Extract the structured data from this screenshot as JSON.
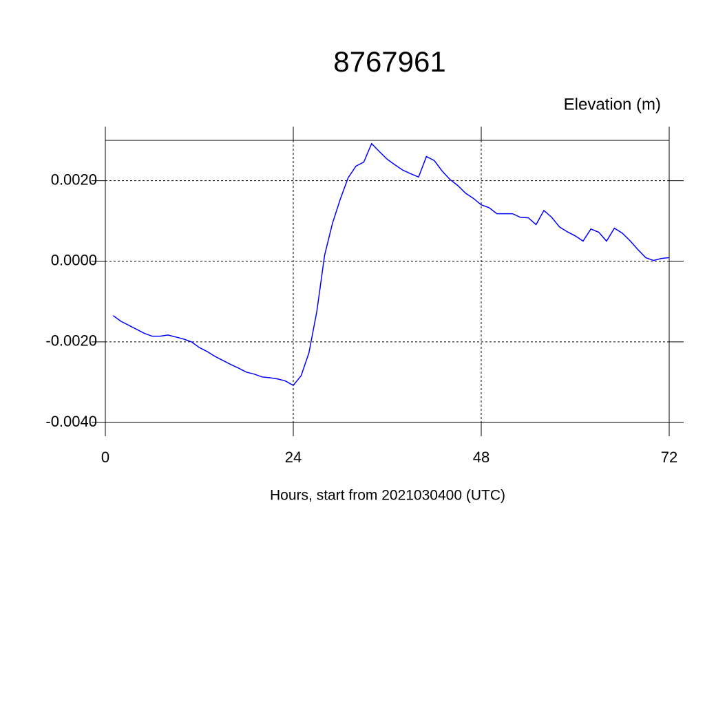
{
  "chart_data": {
    "type": "line",
    "title": "8767961",
    "y_label": "Elevation (m)",
    "x_label": "Hours, start from 2021030400 (UTC)",
    "color": "#0000ff",
    "grid": true,
    "x": [
      1,
      2,
      3,
      4,
      5,
      6,
      7,
      8,
      9,
      10,
      11,
      12,
      13,
      14,
      15,
      16,
      17,
      18,
      19,
      20,
      21,
      22,
      23,
      24,
      25,
      26,
      27,
      28,
      29,
      30,
      31,
      32,
      33,
      34,
      35,
      36,
      37,
      38,
      39,
      40,
      41,
      42,
      43,
      44,
      45,
      46,
      47,
      48,
      49,
      50,
      51,
      52,
      53,
      54,
      55,
      56,
      57,
      58,
      59,
      60,
      61,
      62,
      63,
      64,
      65,
      66,
      67,
      68,
      69,
      70,
      71,
      72
    ],
    "values": [
      -0.00135,
      -0.00149,
      -0.00159,
      -0.00169,
      -0.00179,
      -0.00186,
      -0.00186,
      -0.00183,
      -0.00188,
      -0.00193,
      -0.002,
      -0.00214,
      -0.00224,
      -0.00236,
      -0.00246,
      -0.00256,
      -0.00265,
      -0.00275,
      -0.0028,
      -0.00287,
      -0.00289,
      -0.00292,
      -0.00297,
      -0.00308,
      -0.00284,
      -0.00227,
      -0.00125,
      0.00015,
      0.00094,
      0.00154,
      0.00207,
      0.00236,
      0.00246,
      0.00292,
      0.00272,
      0.00253,
      0.00239,
      0.00226,
      0.00217,
      0.00209,
      0.0026,
      0.0025,
      0.00224,
      0.00203,
      0.00188,
      0.00169,
      0.00156,
      0.0014,
      0.00133,
      0.00118,
      0.00118,
      0.00118,
      0.00109,
      0.00108,
      0.00091,
      0.00126,
      0.00109,
      0.00085,
      0.00073,
      0.00063,
      0.0005,
      0.0008,
      0.00072,
      0.0005,
      0.00082,
      0.0007,
      0.00051,
      0.00029,
      9e-05,
      2e-05,
      7e-05,
      9e-05
    ],
    "xlim": [
      0,
      72
    ],
    "xticks": [
      0,
      24,
      48,
      72
    ],
    "ylim": [
      -0.004,
      0.003
    ],
    "yticks": [
      {
        "value": -0.004,
        "label": "-0.0040"
      },
      {
        "value": -0.002,
        "label": "-0.0020"
      },
      {
        "value": 0,
        "label": "0.0000"
      },
      {
        "value": 0.002,
        "label": "0.0020"
      }
    ]
  }
}
